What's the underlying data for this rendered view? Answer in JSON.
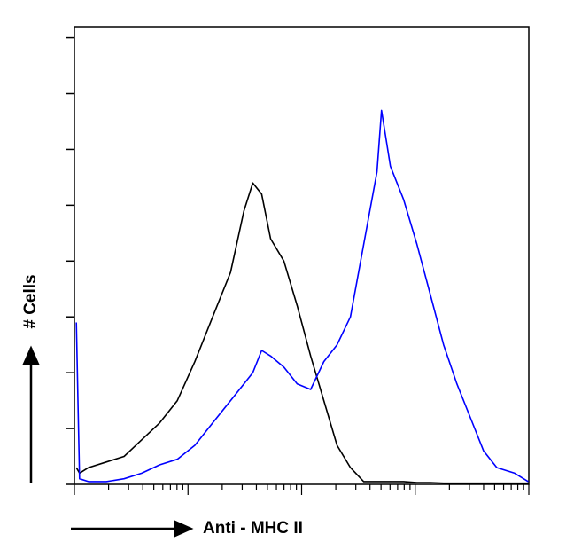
{
  "chart_data": {
    "type": "line",
    "x_label": "Anti - MHC II",
    "y_label": "# Cells",
    "x": [
      1.04,
      1.11,
      1.33,
      1.91,
      2.74,
      3.92,
      5.62,
      8.06,
      11.5,
      16.5,
      23.7,
      31.1,
      37.2,
      44.5,
      53.3,
      69.8,
      91.4,
      120,
      157,
      205,
      269,
      352,
      461,
      505,
      604,
      791,
      1036,
      1358,
      1778,
      2328,
      3050,
      3995,
      5234,
      7499,
      9900
    ],
    "series": [
      {
        "color": "#000000",
        "values": [
          0.3,
          0.2,
          0.3,
          0.4,
          0.5,
          0.8,
          1.1,
          1.5,
          2.2,
          3.0,
          3.8,
          4.9,
          5.4,
          5.2,
          4.4,
          4.0,
          3.2,
          2.3,
          1.5,
          0.7,
          0.3,
          0.05,
          0.05,
          0.05,
          0.05,
          0.05,
          0.03,
          0.03,
          0.02,
          0.02,
          0.02,
          0.02,
          0.02,
          0.02,
          0.02
        ]
      },
      {
        "color": "#0000ff",
        "values": [
          2.9,
          0.1,
          0.05,
          0.05,
          0.1,
          0.2,
          0.35,
          0.45,
          0.7,
          1.1,
          1.5,
          1.8,
          2.0,
          2.4,
          2.3,
          2.1,
          1.8,
          1.7,
          2.2,
          2.5,
          3.0,
          4.3,
          5.6,
          6.7,
          5.7,
          5.1,
          4.3,
          3.4,
          2.5,
          1.8,
          1.2,
          0.6,
          0.3,
          0.2,
          0.05
        ]
      }
    ],
    "xscale": "log",
    "xlim": [
      1,
      10000
    ],
    "xticks": [
      1,
      2,
      3,
      4,
      5,
      6,
      7,
      8,
      9,
      10,
      20,
      30,
      40,
      50,
      60,
      70,
      80,
      90,
      100,
      200,
      300,
      400,
      500,
      600,
      700,
      800,
      900,
      1000,
      2000,
      3000,
      4000,
      5000,
      6000,
      7000,
      8000,
      9000,
      10000
    ],
    "ylim": [
      0,
      8.2
    ],
    "yticks": [
      0,
      1,
      2,
      3,
      4,
      5,
      6,
      7,
      8
    ]
  }
}
